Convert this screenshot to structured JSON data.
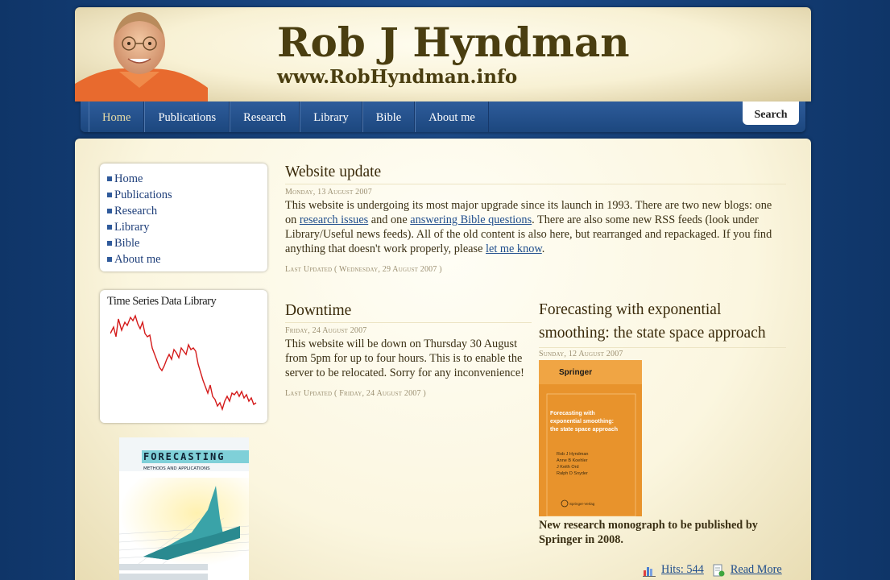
{
  "header": {
    "title": "Rob J Hyndman",
    "url": "www.RobHyndman.info"
  },
  "nav": {
    "items": [
      "Home",
      "Publications",
      "Research",
      "Library",
      "Bible",
      "About me"
    ],
    "active": "Home",
    "search_label": "Search"
  },
  "sidebar": {
    "menu": [
      "Home",
      "Publications",
      "Research",
      "Library",
      "Bible",
      "About me"
    ],
    "ts_title": "Time Series Data Library",
    "book": {
      "title": "FORECASTING",
      "subtitle": "METHODS AND APPLICATIONS"
    }
  },
  "articles": [
    {
      "title": "Website update",
      "date": "Monday, 13 August 2007",
      "body_pre": "This website is undergoing its most major upgrade since its launch in 1993. There are two new blogs: one on ",
      "link1": "research issues",
      "body_mid": " and one ",
      "link2": "answering Bible questions",
      "body_mid2": ". There are also some new RSS feeds (look under Library/Useful news feeds). All of the old content is also here, but rearranged and repackaged. If you find anything that doesn't work properly, please ",
      "link3": "let me know",
      "body_post": ".",
      "updated": "Last Updated ( Wednesday, 29 August 2007 )"
    },
    {
      "title": "Downtime",
      "date": "Friday, 24 August 2007",
      "body": "This website will be down on Thursday 30 August from 5pm for up to four hours. This is to enable the server to be relocated. Sorry for any inconvenience!",
      "updated": "Last Updated ( Friday, 24 August 2007 )"
    },
    {
      "title": "Forecasting with exponential smoothing: the state space approach",
      "date": "Sunday, 12 August 2007",
      "cover": {
        "publisher": "Springer",
        "title": "Forecasting with exponential smoothing: the state space approach",
        "authors": [
          "Rob J Hyndman",
          "Anne B Koehler",
          "J Keith Ord",
          "Ralph D Snyder"
        ],
        "imprint": "Springer-Verlag"
      },
      "note": "New research monograph to be published by Springer in 2008.",
      "hits": "Hits: 544",
      "read_more": "Read More"
    }
  ],
  "colors": {
    "background": "#1d4d8c",
    "nav": "#2a578f",
    "cream": "#fbf6df",
    "link": "#1f4d8c",
    "chart_line": "#d41a1a",
    "book_orange": "#e8932c"
  }
}
